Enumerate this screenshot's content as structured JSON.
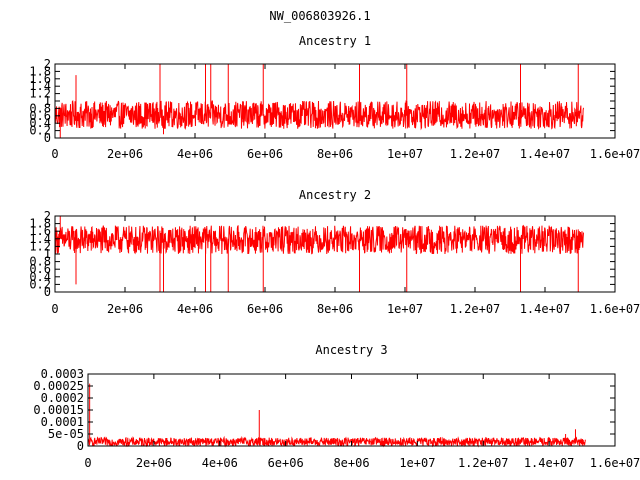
{
  "title": "NW_006803926.1",
  "series_color": "#ff0000",
  "x_axis": {
    "min": 0,
    "max": 16000000,
    "ticks": [
      0,
      2000000,
      4000000,
      6000000,
      8000000,
      10000000,
      12000000,
      14000000,
      16000000
    ],
    "tick_labels": [
      "0",
      "2e+06",
      "4e+06",
      "6e+06",
      "8e+06",
      "1e+07",
      "1.2e+07",
      "1.4e+07",
      "1.6e+07"
    ]
  },
  "chart_data": [
    {
      "type": "line",
      "title": "Ancestry 1",
      "xlim": [
        0,
        16000000
      ],
      "ylim": [
        0,
        2
      ],
      "yticks": [
        0,
        0.2,
        0.4,
        0.6,
        0.8,
        1,
        1.2,
        1.4,
        1.6,
        1.8,
        2
      ],
      "ytick_labels": [
        "0",
        "0.2",
        "0.4",
        "0.6",
        "0.8",
        "1",
        "1.2",
        "1.4",
        "1.6",
        "1.8",
        "2"
      ],
      "x_end": 15100000,
      "baseline": 0.6,
      "noise_low": 0.25,
      "noise_high": 1.0,
      "spikes": [
        {
          "x": 150000,
          "y": 0.0
        },
        {
          "x": 600000,
          "y": 1.7
        },
        {
          "x": 3000000,
          "y": 2.0
        },
        {
          "x": 3100000,
          "y": 0.1
        },
        {
          "x": 4300000,
          "y": 2.0
        },
        {
          "x": 4450000,
          "y": 2.0
        },
        {
          "x": 4950000,
          "y": 2.0
        },
        {
          "x": 5950000,
          "y": 2.0
        },
        {
          "x": 8700000,
          "y": 2.0
        },
        {
          "x": 10050000,
          "y": 2.0
        },
        {
          "x": 13300000,
          "y": 2.0
        },
        {
          "x": 14950000,
          "y": 2.0
        }
      ]
    },
    {
      "type": "line",
      "title": "Ancestry 2",
      "xlim": [
        0,
        16000000
      ],
      "ylim": [
        0,
        2
      ],
      "yticks": [
        0,
        0.2,
        0.4,
        0.6,
        0.8,
        1,
        1.2,
        1.4,
        1.6,
        1.8,
        2
      ],
      "ytick_labels": [
        "0",
        "0.2",
        "0.4",
        "0.6",
        "0.8",
        "1",
        "1.2",
        "1.4",
        "1.6",
        "1.8",
        "2"
      ],
      "x_end": 15100000,
      "baseline": 1.4,
      "noise_low": 1.0,
      "noise_high": 1.75,
      "spikes": [
        {
          "x": 150000,
          "y": 2.0
        },
        {
          "x": 600000,
          "y": 0.2
        },
        {
          "x": 3000000,
          "y": 0.0
        },
        {
          "x": 3100000,
          "y": 0.0
        },
        {
          "x": 4300000,
          "y": 0.0
        },
        {
          "x": 4450000,
          "y": 0.0
        },
        {
          "x": 4950000,
          "y": 0.0
        },
        {
          "x": 5950000,
          "y": 0.0
        },
        {
          "x": 8700000,
          "y": 0.0
        },
        {
          "x": 10050000,
          "y": 0.0
        },
        {
          "x": 13300000,
          "y": 0.0
        },
        {
          "x": 14950000,
          "y": 0.0
        }
      ]
    },
    {
      "type": "line",
      "title": "Ancestry 3",
      "xlim": [
        0,
        16000000
      ],
      "ylim": [
        0,
        0.0003
      ],
      "yticks": [
        0,
        5e-05,
        0.0001,
        0.00015,
        0.0002,
        0.00025,
        0.0003
      ],
      "ytick_labels": [
        "0",
        "5e-05",
        "0.0001",
        "0.00015",
        "0.0002",
        "0.00025",
        "0.0003"
      ],
      "x_end": 15100000,
      "baseline": 1e-05,
      "noise_low": 0.0,
      "noise_high": 3.5e-05,
      "spikes": [
        {
          "x": 50000,
          "y": 0.00026
        },
        {
          "x": 5200000,
          "y": 0.00015
        },
        {
          "x": 14800000,
          "y": 7e-05
        },
        {
          "x": 14500000,
          "y": 5e-05
        }
      ]
    }
  ]
}
